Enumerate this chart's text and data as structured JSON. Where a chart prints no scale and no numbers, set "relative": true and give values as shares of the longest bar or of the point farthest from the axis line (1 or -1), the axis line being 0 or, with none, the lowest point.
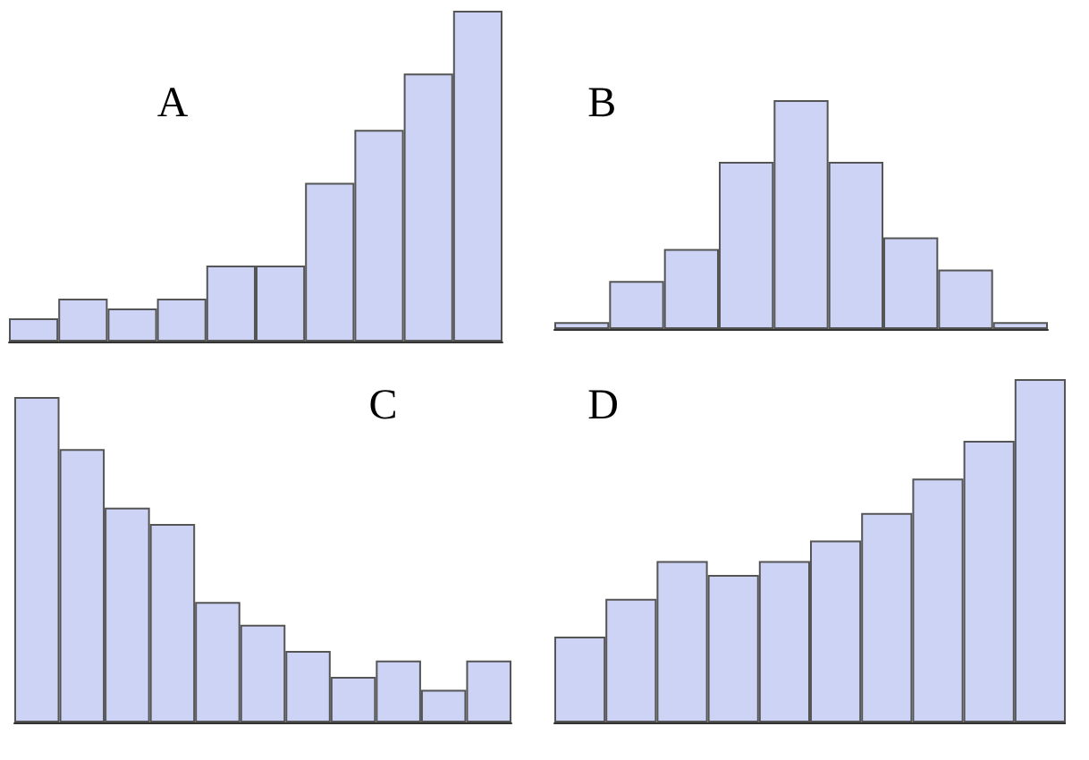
{
  "chart_data": [
    {
      "type": "bar",
      "title": "A",
      "relative": true,
      "categories": [
        null,
        null,
        null,
        null,
        null,
        null,
        null,
        null,
        null,
        null
      ],
      "color": "#ccd3f5",
      "values": [
        0.07,
        0.13,
        0.1,
        0.13,
        0.23,
        0.23,
        0.48,
        0.64,
        0.81,
        1
      ]
    },
    {
      "type": "bar",
      "title": "B",
      "relative": true,
      "categories": [
        null,
        null,
        null,
        null,
        null,
        null,
        null,
        null,
        null
      ],
      "color": "#ccd3f5",
      "values": [
        0.03,
        0.21,
        0.35,
        0.73,
        1,
        0.73,
        0.4,
        0.26,
        0.03
      ]
    },
    {
      "type": "bar",
      "title": "C",
      "relative": true,
      "categories": [
        null,
        null,
        null,
        null,
        null,
        null,
        null,
        null,
        null,
        null,
        null
      ],
      "color": "#ccd3f5",
      "values": [
        1,
        0.84,
        0.66,
        0.61,
        0.37,
        0.3,
        0.22,
        0.14,
        0.19,
        0.1,
        0.19
      ]
    },
    {
      "type": "bar",
      "title": "D",
      "relative": true,
      "categories": [
        null,
        null,
        null,
        null,
        null,
        null,
        null,
        null,
        null,
        null
      ],
      "color": "#ccd3f5",
      "values": [
        0.25,
        0.36,
        0.47,
        0.43,
        0.47,
        0.53,
        0.61,
        0.71,
        0.82,
        1
      ]
    }
  ]
}
